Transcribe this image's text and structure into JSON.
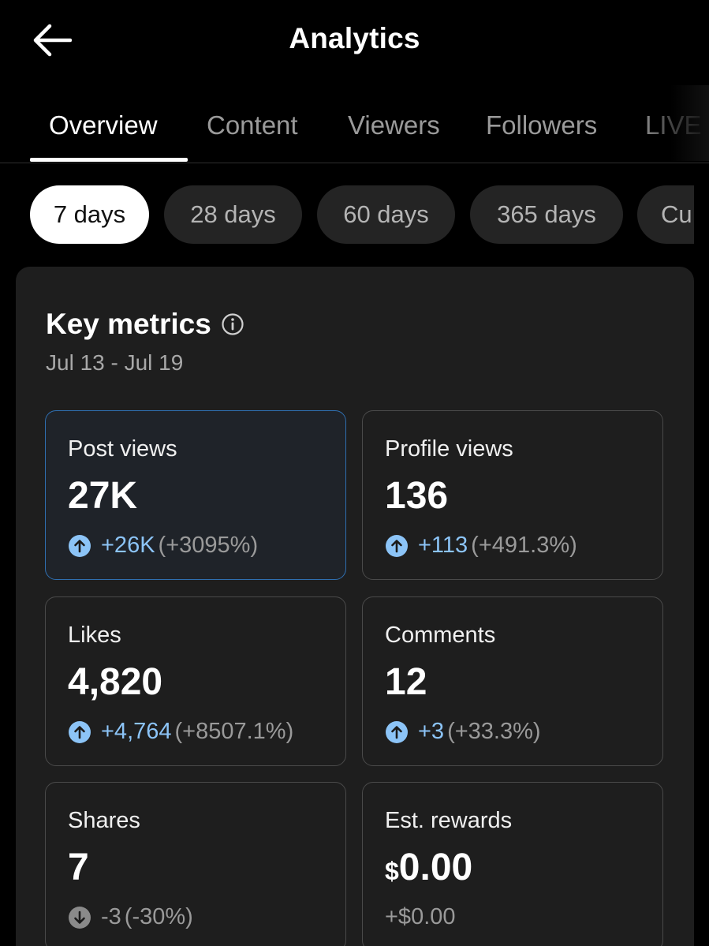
{
  "header": {
    "title": "Analytics",
    "back_icon": "arrow-left-icon"
  },
  "tabs": [
    {
      "label": "Overview",
      "active": true
    },
    {
      "label": "Content",
      "active": false
    },
    {
      "label": "Viewers",
      "active": false
    },
    {
      "label": "Followers",
      "active": false
    },
    {
      "label": "LIVE",
      "active": false
    }
  ],
  "periods": [
    {
      "label": "7 days",
      "selected": true
    },
    {
      "label": "28 days",
      "selected": false
    },
    {
      "label": "60 days",
      "selected": false
    },
    {
      "label": "365 days",
      "selected": false
    },
    {
      "label": "Cu",
      "selected": false
    }
  ],
  "key_metrics": {
    "title": "Key metrics",
    "info_icon": "info-icon",
    "date_range": "Jul 13 - Jul 19",
    "metrics": [
      {
        "label": "Post views",
        "value": "27K",
        "delta": "+26K",
        "percent": "(+3095%)",
        "direction": "up",
        "selected": true
      },
      {
        "label": "Profile views",
        "value": "136",
        "delta": "+113",
        "percent": "(+491.3%)",
        "direction": "up",
        "selected": false
      },
      {
        "label": "Likes",
        "value": "4,820",
        "delta": "+4,764",
        "percent": "(+8507.1%)",
        "direction": "up",
        "selected": false
      },
      {
        "label": "Comments",
        "value": "12",
        "delta": "+3",
        "percent": "(+33.3%)",
        "direction": "up",
        "selected": false
      },
      {
        "label": "Shares",
        "value": "7",
        "delta": "-3",
        "percent": "(-30%)",
        "direction": "down",
        "selected": false
      },
      {
        "label": "Est. rewards",
        "value_currency": "$",
        "value": "0.00",
        "delta": "+$0.00",
        "direction": "none",
        "selected": false
      }
    ]
  },
  "colors": {
    "accent_blue": "#8cc4f7",
    "selected_border": "#2f6fb0",
    "card_bg": "#1e1e1e",
    "chip_bg": "#242424"
  }
}
